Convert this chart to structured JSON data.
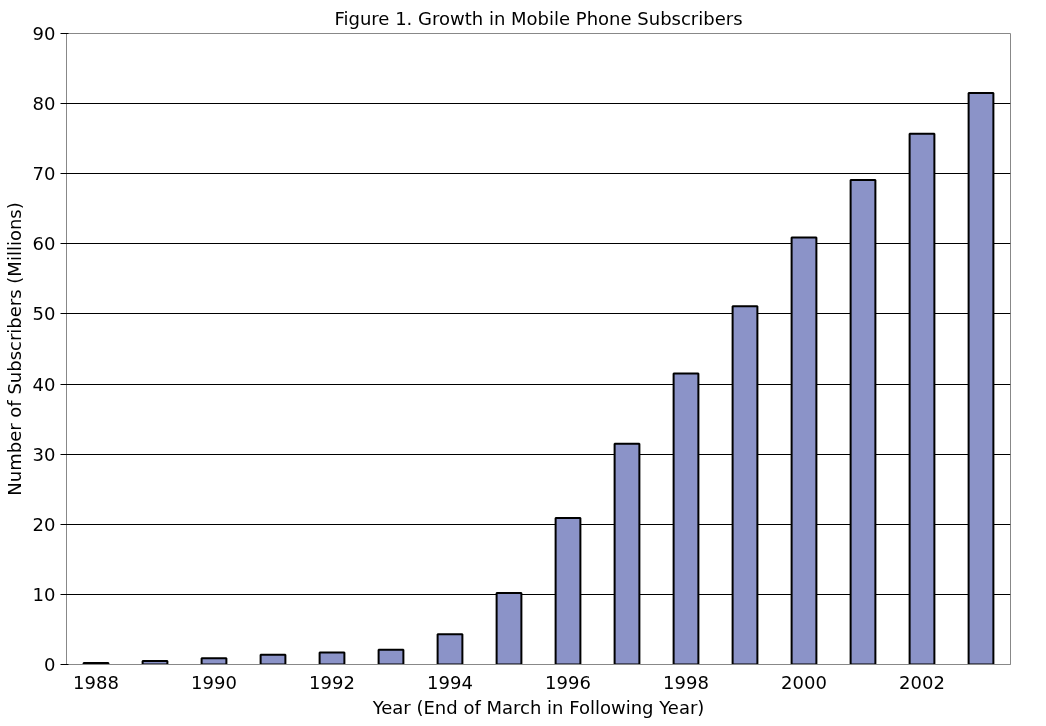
{
  "chart_data": {
    "type": "bar",
    "title": "Figure 1. Growth in Mobile Phone Subscribers",
    "xlabel": "Year (End of March in Following Year)",
    "ylabel": "Number of Subscribers (Millions)",
    "categories": [
      "1988",
      null,
      "1990",
      null,
      "1992",
      null,
      "1994",
      null,
      "1996",
      null,
      "1998",
      null,
      "2000",
      null,
      "2002",
      null
    ],
    "values": [
      0.2,
      0.5,
      0.9,
      1.4,
      1.7,
      2.1,
      4.3,
      10.2,
      20.9,
      31.5,
      41.5,
      51.1,
      60.9,
      69.1,
      75.7,
      81.5
    ],
    "color": "#8b93c8",
    "ylim": [
      0,
      90
    ],
    "yticks": [
      0,
      10,
      20,
      30,
      40,
      50,
      60,
      70,
      80,
      90
    ],
    "grid": "y"
  }
}
